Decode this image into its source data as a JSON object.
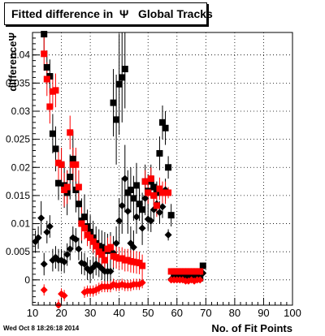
{
  "chart_data": {
    "type": "scatter",
    "title": "Fitted difference in  Ψ   Global Tracks",
    "xlabel": "No. of Fit Points",
    "ylabel": "differenceΨ",
    "xlim": [
      10,
      100
    ],
    "ylim": [
      -0.0045,
      0.044
    ],
    "x_ticks": [
      "10",
      "20",
      "30",
      "40",
      "50",
      "60",
      "70",
      "80",
      "90",
      "100"
    ],
    "y_ticks": [
      "0",
      "0.005",
      "0.01",
      "0.015",
      "0.02",
      "0.025",
      "0.03",
      "0.035",
      "0.04"
    ],
    "grid": true,
    "footer": "Wed Oct  8 18:26:18 2014",
    "series": [
      {
        "marker": "square",
        "color": "#000000",
        "points": [
          [
            14,
            0.0437,
            0.004
          ],
          [
            15,
            0.0378,
            0.003
          ],
          [
            16,
            0.0362,
            0.003
          ],
          [
            17,
            0.026,
            0.0035
          ],
          [
            18,
            0.0233,
            0.004
          ],
          [
            19,
            0.0172,
            0.003
          ],
          [
            20,
            0.0205,
            0.003
          ],
          [
            21,
            0.0168,
            0.004
          ],
          [
            22,
            0.0155,
            0.004
          ],
          [
            23,
            0.0183,
            0.004
          ],
          [
            24,
            0.0215,
            0.005
          ],
          [
            25,
            0.016,
            0.004
          ],
          [
            26,
            0.0135,
            0.004
          ],
          [
            27,
            0.0105,
            0.004
          ],
          [
            28,
            0.0112,
            0.004
          ],
          [
            29,
            0.0095,
            0.003
          ],
          [
            30,
            0.0085,
            0.003
          ],
          [
            31,
            0.0075,
            0.003
          ],
          [
            32,
            0.0065,
            0.003
          ],
          [
            33,
            0.006,
            0.003
          ],
          [
            34,
            0.0058,
            0.003
          ],
          [
            35,
            0.0055,
            0.003
          ],
          [
            36,
            0.0052,
            0.003
          ],
          [
            37,
            0.0055,
            0.003
          ],
          [
            38,
            0.0315,
            0.006
          ],
          [
            39,
            0.0285,
            0.008
          ],
          [
            40,
            0.0348,
            0.009
          ],
          [
            41,
            0.036,
            0.008
          ],
          [
            42,
            0.0375,
            0.007
          ],
          [
            43,
            0.0155,
            0.004
          ],
          [
            44,
            0.016,
            0.004
          ],
          [
            45,
            0.0145,
            0.004
          ],
          [
            46,
            0.0168,
            0.004
          ],
          [
            47,
            0.0135,
            0.003
          ],
          [
            48,
            0.0125,
            0.003
          ],
          [
            49,
            0.0175,
            0.003
          ],
          [
            50,
            0.0158,
            0.003
          ],
          [
            51,
            0.0175,
            0.003
          ],
          [
            52,
            0.0165,
            0.002
          ],
          [
            53,
            0.0155,
            0.002
          ],
          [
            54,
            0.0225,
            0.003
          ],
          [
            55,
            0.028,
            0.003
          ],
          [
            56,
            0.027,
            0.003
          ],
          [
            57,
            0.02,
            0.002
          ],
          [
            58,
            0.0115,
            0.002
          ],
          [
            59,
            0.0005,
            0.0003
          ],
          [
            60,
            0.0005,
            0.0003
          ],
          [
            61,
            0.0005,
            0.0003
          ],
          [
            62,
            0.0005,
            0.0003
          ],
          [
            63,
            0.0005,
            0.0003
          ],
          [
            64,
            0.0005,
            0.0003
          ],
          [
            65,
            0.0005,
            0.0003
          ],
          [
            66,
            0.0005,
            0.0003
          ],
          [
            67,
            0.0005,
            0.0003
          ],
          [
            68,
            0.0003,
            0.0003
          ],
          [
            69,
            0.0025,
            0.0004
          ]
        ]
      },
      {
        "marker": "diamond",
        "color": "#000000",
        "points": [
          [
            11,
            0.0068,
            0.002
          ],
          [
            12,
            0.0075,
            0.002
          ],
          [
            13,
            0.011,
            0.003
          ],
          [
            14,
            0.0028,
            0.002
          ],
          [
            15,
            0.0085,
            0.002
          ],
          [
            16,
            0.0095,
            0.002
          ],
          [
            17,
            0.0035,
            0.002
          ],
          [
            18,
            0.004,
            0.002
          ],
          [
            19,
            0.0035,
            0.002
          ],
          [
            20,
            0.0035,
            0.002
          ],
          [
            21,
            0.0032,
            0.002
          ],
          [
            22,
            0.0045,
            0.002
          ],
          [
            23,
            0.0055,
            0.002
          ],
          [
            24,
            0.0075,
            0.002
          ],
          [
            25,
            0.0072,
            0.002
          ],
          [
            26,
            0.0055,
            0.002
          ],
          [
            27,
            0.003,
            0.002
          ],
          [
            28,
            0.0028,
            0.002
          ],
          [
            29,
            0.002,
            0.002
          ],
          [
            30,
            0.0015,
            0.002
          ],
          [
            31,
            0.0022,
            0.002
          ],
          [
            32,
            0.0028,
            0.002
          ],
          [
            33,
            0.0025,
            0.002
          ],
          [
            34,
            0.002,
            0.002
          ],
          [
            35,
            0.0015,
            0.002
          ],
          [
            36,
            0.0015,
            0.002
          ],
          [
            37,
            0.0015,
            0.002
          ],
          [
            38,
            0.0048,
            0.003
          ],
          [
            39,
            0.0065,
            0.003
          ],
          [
            40,
            0.0105,
            0.004
          ],
          [
            41,
            0.0132,
            0.005
          ],
          [
            42,
            0.018,
            0.006
          ],
          [
            43,
            0.0122,
            0.004
          ],
          [
            44,
            0.0065,
            0.003
          ],
          [
            45,
            0.0058,
            0.003
          ],
          [
            46,
            0.0112,
            0.003
          ],
          [
            47,
            0.0135,
            0.003
          ],
          [
            48,
            0.0092,
            0.003
          ],
          [
            49,
            0.0145,
            0.003
          ],
          [
            50,
            0.0108,
            0.002
          ],
          [
            51,
            0.0105,
            0.002
          ],
          [
            52,
            0.0125,
            0.002
          ],
          [
            53,
            0.0135,
            0.002
          ],
          [
            54,
            0.012,
            0.002
          ],
          [
            55,
            0.013,
            0.002
          ],
          [
            56,
            0.016,
            0.002
          ],
          [
            57,
            0.008,
            0.001
          ],
          [
            58,
            0.0001,
            0.0002
          ],
          [
            59,
            0.0001,
            0.0002
          ],
          [
            60,
            0.0001,
            0.0002
          ],
          [
            61,
            0.0001,
            0.0002
          ],
          [
            62,
            0.0001,
            0.0002
          ],
          [
            63,
            0.0001,
            0.0002
          ],
          [
            64,
            0.0001,
            0.0002
          ],
          [
            65,
            0.0001,
            0.0002
          ],
          [
            66,
            0.0001,
            0.0002
          ],
          [
            67,
            0.0001,
            0.0002
          ],
          [
            68,
            0.0001,
            0.0002
          ],
          [
            69,
            0.0012,
            0.0002
          ]
        ]
      },
      {
        "marker": "square",
        "color": "#ff0000",
        "points": [
          [
            14,
            0.0402,
            0.003
          ],
          [
            15,
            0.0357,
            0.003
          ],
          [
            16,
            0.0308,
            0.003
          ],
          [
            17,
            0.0335,
            0.003
          ],
          [
            18,
            0.0337,
            0.003
          ],
          [
            19,
            0.0208,
            0.003
          ],
          [
            20,
            0.0205,
            0.003
          ],
          [
            21,
            0.016,
            0.003
          ],
          [
            22,
            0.0165,
            0.003
          ],
          [
            23,
            0.0262,
            0.003
          ],
          [
            24,
            0.0205,
            0.003
          ],
          [
            25,
            0.0205,
            0.003
          ],
          [
            26,
            0.0165,
            0.003
          ],
          [
            27,
            0.01,
            0.003
          ],
          [
            28,
            0.0092,
            0.002
          ],
          [
            29,
            0.008,
            0.002
          ],
          [
            30,
            0.0075,
            0.002
          ],
          [
            31,
            0.0068,
            0.002
          ],
          [
            32,
            0.006,
            0.002
          ],
          [
            33,
            0.005,
            0.002
          ],
          [
            34,
            0.0045,
            0.002
          ],
          [
            35,
            0.0035,
            0.002
          ],
          [
            36,
            0.0055,
            0.002
          ],
          [
            37,
            0.0058,
            0.002
          ],
          [
            38,
            0.0042,
            0.002
          ],
          [
            39,
            0.004,
            0.002
          ],
          [
            40,
            0.0038,
            0.002
          ],
          [
            41,
            0.0038,
            0.002
          ],
          [
            42,
            0.0035,
            0.002
          ],
          [
            43,
            0.0035,
            0.002
          ],
          [
            44,
            0.0033,
            0.002
          ],
          [
            45,
            0.0032,
            0.002
          ],
          [
            46,
            0.0031,
            0.002
          ],
          [
            47,
            0.003,
            0.002
          ],
          [
            48,
            0.0025,
            0.002
          ],
          [
            49,
            0.0175,
            0.002
          ],
          [
            50,
            0.0155,
            0.002
          ],
          [
            51,
            0.018,
            0.002
          ],
          [
            52,
            0.015,
            0.002
          ],
          [
            53,
            0.0132,
            0.002
          ],
          [
            54,
            0.0162,
            0.002
          ],
          [
            55,
            0.0155,
            0.002
          ],
          [
            56,
            0.0155,
            0.002
          ],
          [
            57,
            0.0155,
            0.001
          ],
          [
            58,
            0.0015,
            0.0002
          ],
          [
            59,
            0.0015,
            0.0002
          ],
          [
            60,
            0.0015,
            0.0002
          ],
          [
            61,
            0.0015,
            0.0002
          ],
          [
            62,
            0.0015,
            0.0002
          ],
          [
            63,
            0.0015,
            0.0002
          ],
          [
            64,
            0.0015,
            0.0002
          ],
          [
            65,
            0.0015,
            0.0002
          ],
          [
            66,
            0.0015,
            0.0002
          ],
          [
            67,
            0.0015,
            0.0002
          ],
          [
            68,
            0.0015,
            0.0002
          ]
        ]
      },
      {
        "marker": "diamond",
        "color": "#ff0000",
        "points": [
          [
            14,
            -0.0018,
            0.001
          ],
          [
            19,
            -0.0045,
            0.001
          ],
          [
            20,
            -0.0025,
            0.001
          ],
          [
            21,
            -0.0028,
            0.001
          ],
          [
            28,
            -0.0022,
            0.001
          ],
          [
            29,
            -0.002,
            0.001
          ],
          [
            30,
            -0.002,
            0.001
          ],
          [
            31,
            -0.002,
            0.001
          ],
          [
            32,
            -0.0018,
            0.001
          ],
          [
            33,
            -0.0015,
            0.001
          ],
          [
            34,
            -0.0012,
            0.001
          ],
          [
            35,
            -0.0012,
            0.001
          ],
          [
            36,
            -0.0012,
            0.001
          ],
          [
            37,
            -0.0012,
            0.001
          ],
          [
            38,
            -0.0008,
            0.001
          ],
          [
            39,
            -0.001,
            0.001
          ],
          [
            40,
            -0.001,
            0.001
          ],
          [
            41,
            -0.0008,
            0.001
          ],
          [
            42,
            -0.001,
            0.001
          ],
          [
            43,
            -0.001,
            0.001
          ],
          [
            44,
            -0.001,
            0.001
          ],
          [
            45,
            -0.0008,
            0.001
          ],
          [
            46,
            -0.0008,
            0.001
          ],
          [
            47,
            -0.0008,
            0.001
          ],
          [
            48,
            -0.0005,
            0.001
          ],
          [
            58,
            0.0,
            0.0002
          ],
          [
            59,
            0.0,
            0.0002
          ],
          [
            60,
            0.0,
            0.0002
          ],
          [
            61,
            0.0,
            0.0002
          ],
          [
            62,
            0.0,
            0.0002
          ],
          [
            63,
            -0.0002,
            0.0002
          ],
          [
            64,
            -0.0002,
            0.0002
          ],
          [
            65,
            0.0,
            0.0002
          ],
          [
            66,
            -0.0002,
            0.0002
          ],
          [
            67,
            0.0,
            0.0002
          ],
          [
            68,
            0.0,
            0.0002
          ]
        ]
      }
    ]
  }
}
